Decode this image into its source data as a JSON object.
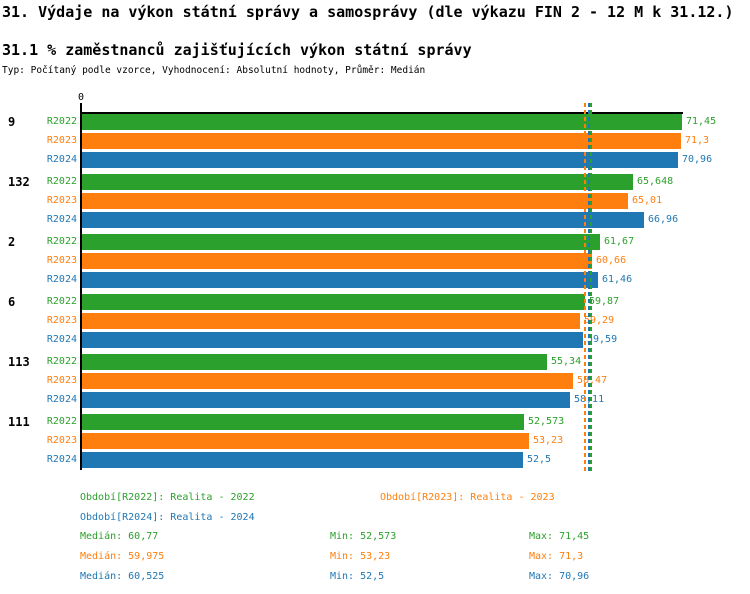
{
  "header": {
    "title": "31. Výdaje na výkon státní správy a samosprávy (dle výkazu FIN 2 - 12 M k 31.12.)",
    "subtitle": "31.1 % zaměstnanců zajišťujících výkon státní správy",
    "meta": "Typ: Počítaný podle vzorce, Vyhodnocení: Absolutní hodnoty, Průměr: Medián"
  },
  "colors": {
    "r2022": "#2ca02c",
    "r2023": "#ff7f0e",
    "r2024": "#1f77b4",
    "axis": "#000000",
    "background": "#ffffff"
  },
  "chart_data": {
    "type": "bar",
    "orientation": "horizontal",
    "title": "31.1 % zaměstnanců zajišťujících výkon státní správy",
    "xlabel": "",
    "ylabel": "",
    "xlim": [
      0,
      71.8
    ],
    "grid": false,
    "axis_tick_label": "0",
    "categories": [
      "9",
      "132",
      "2",
      "6",
      "113",
      "111"
    ],
    "series": [
      {
        "name": "R2022",
        "color": "#2ca02c",
        "values": [
          71.45,
          65.648,
          61.67,
          59.87,
          55.34,
          52.573
        ],
        "display_values": [
          "71,45",
          "65,648",
          "61,67",
          "59,87",
          "55,34",
          "52,573"
        ],
        "median": 60.77
      },
      {
        "name": "R2023",
        "color": "#ff7f0e",
        "values": [
          71.3,
          65.01,
          60.66,
          59.29,
          58.47,
          53.23
        ],
        "display_values": [
          "71,3",
          "65,01",
          "60,66",
          "59,29",
          "58,47",
          "53,23"
        ],
        "median": 59.975
      },
      {
        "name": "R2024",
        "color": "#1f77b4",
        "values": [
          70.96,
          66.96,
          61.46,
          59.59,
          58.11,
          52.5
        ],
        "display_values": [
          "70,96",
          "66,96",
          "61,46",
          "59,59",
          "58,11",
          "52,5"
        ],
        "median": 60.525
      }
    ],
    "median_lines": [
      {
        "series": "R2022",
        "value": 60.77,
        "color": "#2ca02c",
        "style": "dashed"
      },
      {
        "series": "R2023",
        "value": 59.975,
        "color": "#ff7f0e",
        "style": "dashed"
      },
      {
        "series": "R2024",
        "value": 60.525,
        "color": "#1f77b4",
        "style": "dashed"
      }
    ],
    "legend_position": "bottom"
  },
  "legend": {
    "items": [
      {
        "label": "Období[R2022]: Realita - 2022",
        "color": "#2ca02c"
      },
      {
        "label": "Období[R2023]: Realita - 2023",
        "color": "#ff7f0e"
      },
      {
        "label": "Období[R2024]: Realita - 2024",
        "color": "#1f77b4"
      }
    ]
  },
  "stats": {
    "rows": [
      {
        "series": "R2022",
        "color": "#2ca02c",
        "median": "Medián: 60,77",
        "min": "Min: 52,573",
        "max": "Max: 71,45"
      },
      {
        "series": "R2023",
        "color": "#ff7f0e",
        "median": "Medián: 59,975",
        "min": "Min: 53,23",
        "max": "Max: 71,3"
      },
      {
        "series": "R2024",
        "color": "#1f77b4",
        "median": "Medián: 60,525",
        "min": "Min: 52,5",
        "max": "Max: 70,96"
      }
    ]
  }
}
